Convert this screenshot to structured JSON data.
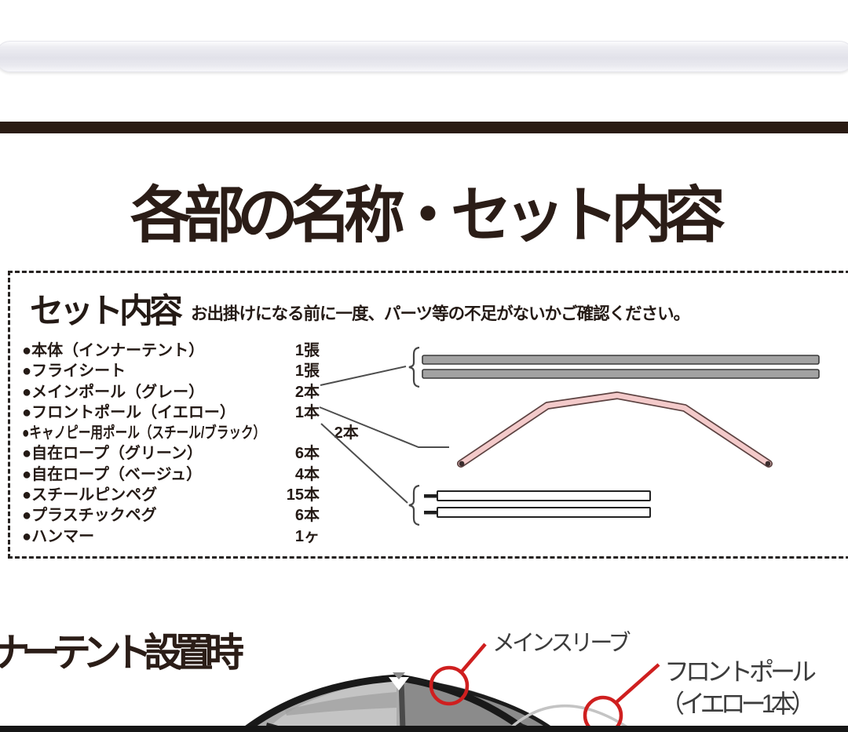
{
  "page": {
    "title": "各部の名称・セット内容"
  },
  "set_box": {
    "heading": "セット内容",
    "note": "お出掛けになる前に一度、パーツ等の不足がないかご確認ください。",
    "items": [
      {
        "name": "●本体（インナーテント）",
        "qty": "1張"
      },
      {
        "name": "●フライシート",
        "qty": "1張"
      },
      {
        "name": "●メインポール（グレー）",
        "qty": "2本"
      },
      {
        "name": "●フロントポール（イエロー）",
        "qty": "1本"
      },
      {
        "name": "●キャノピー用ポール（スチール/ブラック）",
        "qty": "2本"
      },
      {
        "name": "●自在ロープ（グリーン）",
        "qty": "6本"
      },
      {
        "name": "●自在ロープ（ベージュ）",
        "qty": "4本"
      },
      {
        "name": "●スチールピンペグ",
        "qty": "15本"
      },
      {
        "name": "●プラスチックペグ",
        "qty": "6本"
      },
      {
        "name": "●ハンマー",
        "qty": "1ヶ"
      }
    ]
  },
  "section": {
    "heading_visible": "ナーテント設置時"
  },
  "tent_labels": {
    "main_sleeve": "メインスリーブ",
    "front_pole_line1": "フロントポール",
    "front_pole_line2": "（イエロー1本）"
  },
  "colors": {
    "accent_red": "#cf1f1f",
    "header_bar_brown": "#2a1b13",
    "main_pole_gray": "#a2a2a2",
    "front_pole_pink": "#f3caca"
  }
}
